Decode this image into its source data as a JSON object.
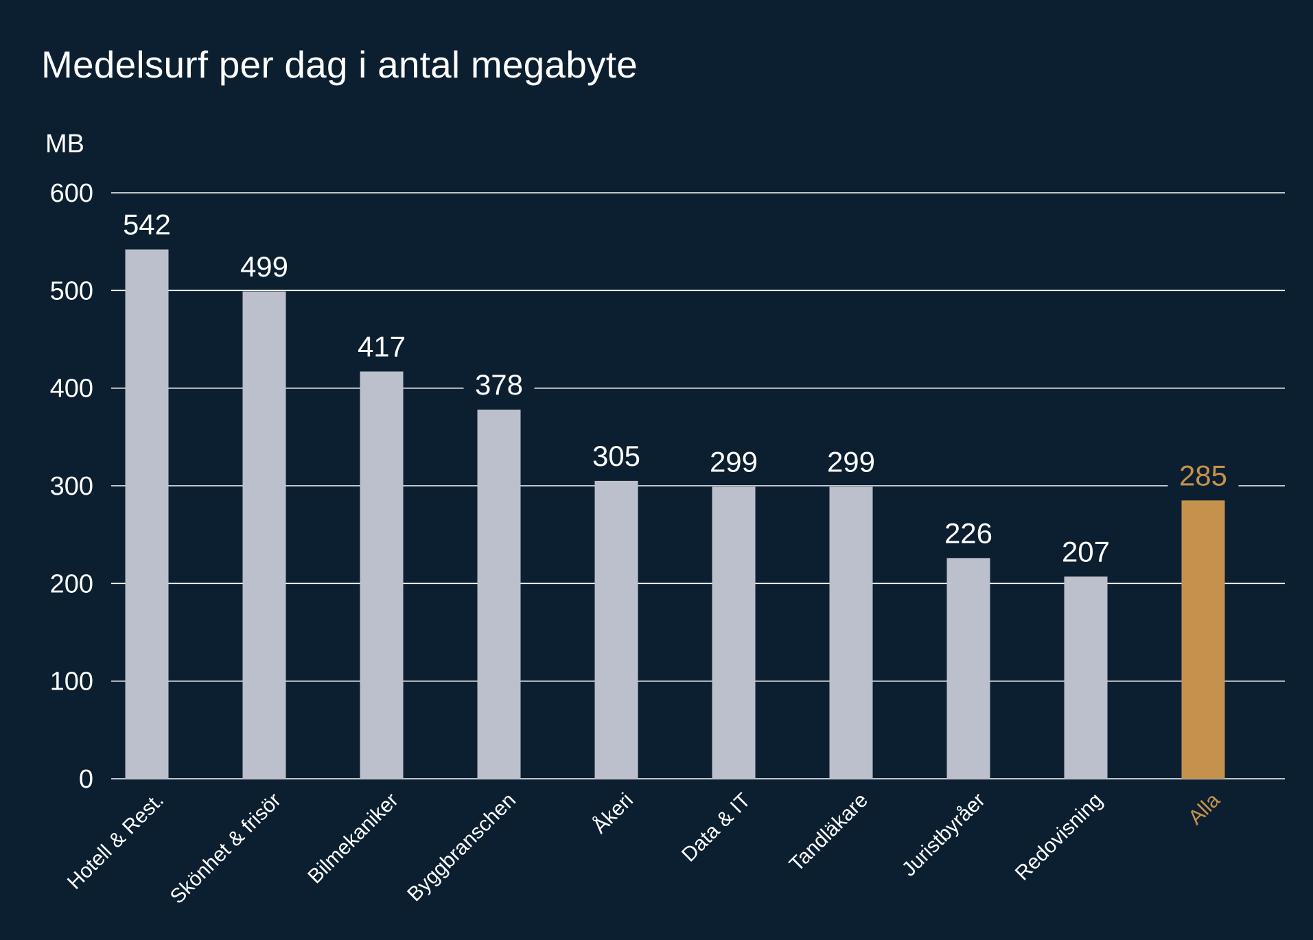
{
  "chart_data": {
    "type": "bar",
    "title": "Medelsurf per dag i antal megabyte",
    "ylabel": "MB",
    "xlabel": "",
    "categories": [
      "Hotell & Rest.",
      "Skönhet & frisör",
      "Bilmekaniker",
      "Byggbranschen",
      "Åkeri",
      "Data & IT",
      "Tandläkare",
      "Juristbyråer",
      "Redovisning",
      "Alla"
    ],
    "values": [
      542,
      499,
      417,
      378,
      305,
      299,
      299,
      226,
      207,
      285
    ],
    "ylim": [
      0,
      600
    ],
    "yticks": [
      0,
      100,
      200,
      300,
      400,
      500,
      600
    ],
    "grid": true,
    "highlight_index": 9,
    "colors": {
      "background": "#0c1f30",
      "bar": "#bcc0cd",
      "highlight": "#c4924c",
      "grid": "#ffffff",
      "text": "#ffffff"
    }
  }
}
